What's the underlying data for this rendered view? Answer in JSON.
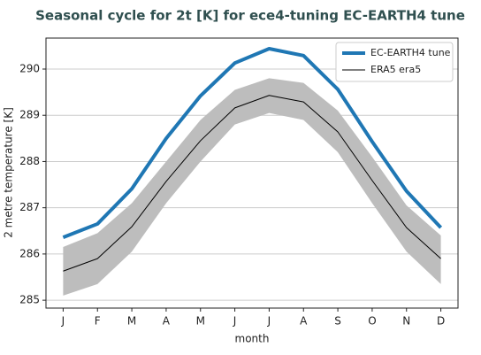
{
  "chart_data": {
    "type": "line",
    "title": "Seasonal cycle for 2t [K] for ece4-tuning EC-EARTH4 tune",
    "x_label": "month",
    "y_label": "2 metre temperature [K]",
    "categories": [
      "J",
      "F",
      "M",
      "A",
      "M",
      "J",
      "J",
      "A",
      "S",
      "O",
      "N",
      "D"
    ],
    "series": [
      {
        "name": "EC-EARTH4 tune",
        "color": "#1f77b4",
        "width": 4,
        "values": [
          286.36,
          286.65,
          287.41,
          288.5,
          289.42,
          290.13,
          290.44,
          290.29,
          289.56,
          288.43,
          287.36,
          286.57
        ]
      },
      {
        "name": "ERA5 era5",
        "color": "#000000",
        "width": 1,
        "values": [
          285.63,
          285.9,
          286.59,
          287.57,
          288.45,
          289.16,
          289.43,
          289.29,
          288.64,
          287.59,
          286.57,
          285.9
        ]
      }
    ],
    "band": {
      "color": "#bdbdbd",
      "upper": [
        286.15,
        286.45,
        287.1,
        288.0,
        288.9,
        289.55,
        289.8,
        289.7,
        289.1,
        288.1,
        287.05,
        286.4
      ],
      "lower": [
        285.1,
        285.35,
        286.05,
        287.1,
        288.0,
        288.8,
        289.05,
        288.9,
        288.2,
        287.1,
        286.05,
        285.35
      ]
    },
    "ylim": [
      284.83,
      290.67
    ],
    "yticks": [
      285,
      286,
      287,
      288,
      289,
      290
    ],
    "grid": true,
    "legend": "upper right"
  }
}
